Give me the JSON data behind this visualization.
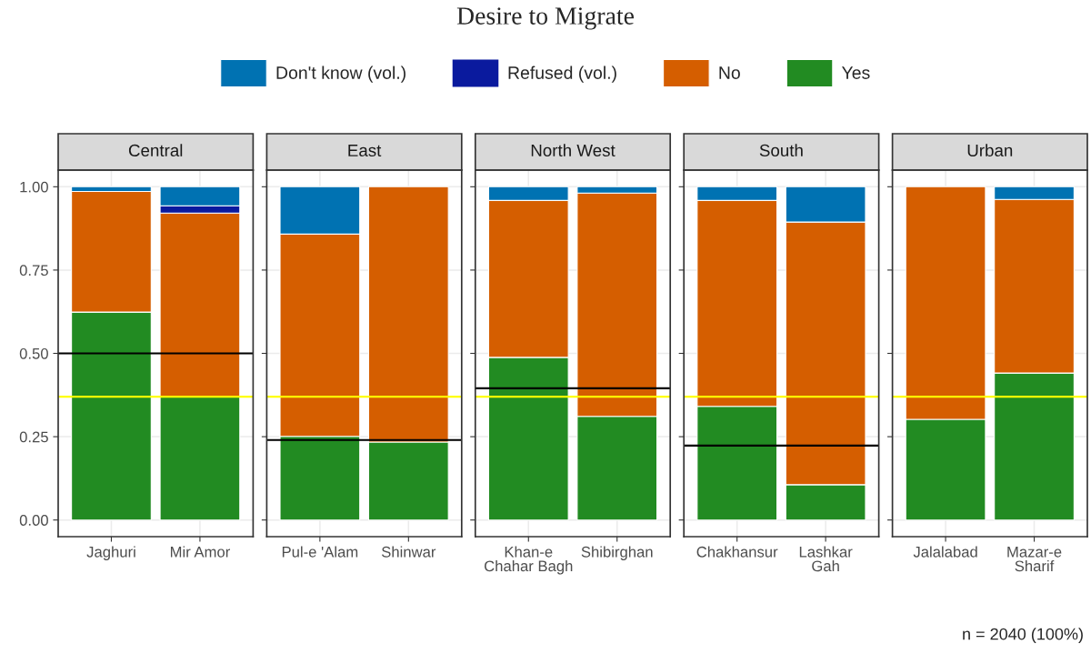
{
  "chart_data": [
    {
      "type": "bar",
      "subtitle": "Central",
      "categories": [
        "Jaghuri",
        "Mir Amor"
      ],
      "stacked": true,
      "grid": true,
      "ylim": [
        -0.05,
        1.05
      ],
      "yticks": [
        {
          "value": 0,
          "label": "0.00"
        },
        {
          "value": 0.25,
          "label": "0.25"
        },
        {
          "value": 0.5,
          "label": "0.50"
        },
        {
          "value": 0.75,
          "label": "0.75"
        },
        {
          "value": 1,
          "label": "1.00"
        }
      ],
      "series": [
        {
          "color": "#228b22",
          "values": [
            0.624,
            0.37
          ]
        },
        {
          "color": "#d55e00",
          "values": [
            0.362,
            0.551
          ]
        },
        {
          "color": "#0a1a9e",
          "values": [
            null,
            0.022
          ]
        },
        {
          "color": "#0072b2",
          "values": [
            0.014,
            0.057
          ]
        }
      ],
      "ref_lines": [
        {
          "axis": "y",
          "value": 0.37,
          "color": "#ffff00"
        },
        {
          "axis": "y",
          "value": 0.5,
          "color": "#000000"
        }
      ]
    },
    {
      "type": "bar",
      "subtitle": "East",
      "categories": [
        "Pul-e 'Alam",
        "Shinwar"
      ],
      "stacked": true,
      "grid": true,
      "tick_labels": "x",
      "ylim": [
        -0.05,
        1.05
      ],
      "yticks": [
        0,
        0.25,
        0.5,
        0.75,
        1
      ],
      "series": [
        {
          "color": "#228b22",
          "values": [
            0.251,
            0.234
          ]
        },
        {
          "color": "#d55e00",
          "values": [
            0.607,
            0.766
          ]
        },
        {
          "color": "#0072b2",
          "values": [
            0.142,
            null
          ]
        }
      ],
      "ref_lines": [
        {
          "axis": "y",
          "value": 0.37,
          "color": "#ffff00"
        },
        {
          "axis": "y",
          "value": 0.24,
          "color": "#000000"
        }
      ]
    },
    {
      "type": "bar",
      "title": "Desire to Migrate",
      "subtitle": "North West",
      "categories": [
        "Khan-e\nChahar Bagh",
        "Shibirghan"
      ],
      "stacked": true,
      "legend": "top",
      "grid": true,
      "tick_labels": "x",
      "ylim": [
        -0.05,
        1.05
      ],
      "yticks": [
        0,
        0.25,
        0.5,
        0.75,
        1
      ],
      "series": [
        {
          "name": "Yes",
          "color": "#228b22",
          "values": [
            0.488,
            0.311
          ]
        },
        {
          "name": "No",
          "color": "#d55e00",
          "values": [
            0.471,
            0.67
          ]
        },
        {
          "name": "Refused (vol.)",
          "color": "#0a1a9e",
          "values": [
            null,
            null
          ]
        },
        {
          "name": "Don't know (vol.)",
          "color": "#0072b2",
          "values": [
            0.041,
            0.019
          ]
        }
      ],
      "ref_lines": [
        {
          "axis": "y",
          "value": 0.37,
          "color": "#ffff00"
        },
        {
          "axis": "y",
          "value": 0.395,
          "color": "#000000"
        }
      ]
    },
    {
      "type": "bar",
      "subtitle": "South",
      "categories": [
        "Chakhansur",
        "Lashkar\nGah"
      ],
      "stacked": true,
      "grid": true,
      "tick_labels": "x",
      "ylim": [
        -0.05,
        1.05
      ],
      "yticks": [
        0,
        0.25,
        0.5,
        0.75,
        1
      ],
      "series": [
        {
          "color": "#228b22",
          "values": [
            0.341,
            0.106
          ]
        },
        {
          "color": "#d55e00",
          "values": [
            0.618,
            0.788
          ]
        },
        {
          "color": "#0072b2",
          "values": [
            0.041,
            0.106
          ]
        }
      ],
      "ref_lines": [
        {
          "axis": "y",
          "value": 0.37,
          "color": "#ffff00"
        },
        {
          "axis": "y",
          "value": 0.223,
          "color": "#000000"
        }
      ]
    },
    {
      "type": "bar",
      "subtitle": "Urban",
      "categories": [
        "Jalalabad",
        "Mazar-e\nSharif"
      ],
      "stacked": true,
      "grid": true,
      "tick_labels": "x",
      "ylim": [
        -0.05,
        1.05
      ],
      "yticks": [
        0,
        0.25,
        0.5,
        0.75,
        1
      ],
      "series": [
        {
          "color": "#228b22",
          "values": [
            0.302,
            0.441
          ]
        },
        {
          "color": "#d55e00",
          "values": [
            0.698,
            0.521
          ]
        },
        {
          "color": "#0072b2",
          "values": [
            null,
            0.038
          ]
        }
      ],
      "ref_lines": [
        {
          "axis": "y",
          "value": 0.37,
          "color": "#ffff00"
        }
      ],
      "annotations": [
        "n = 2040 (100%)"
      ]
    }
  ]
}
